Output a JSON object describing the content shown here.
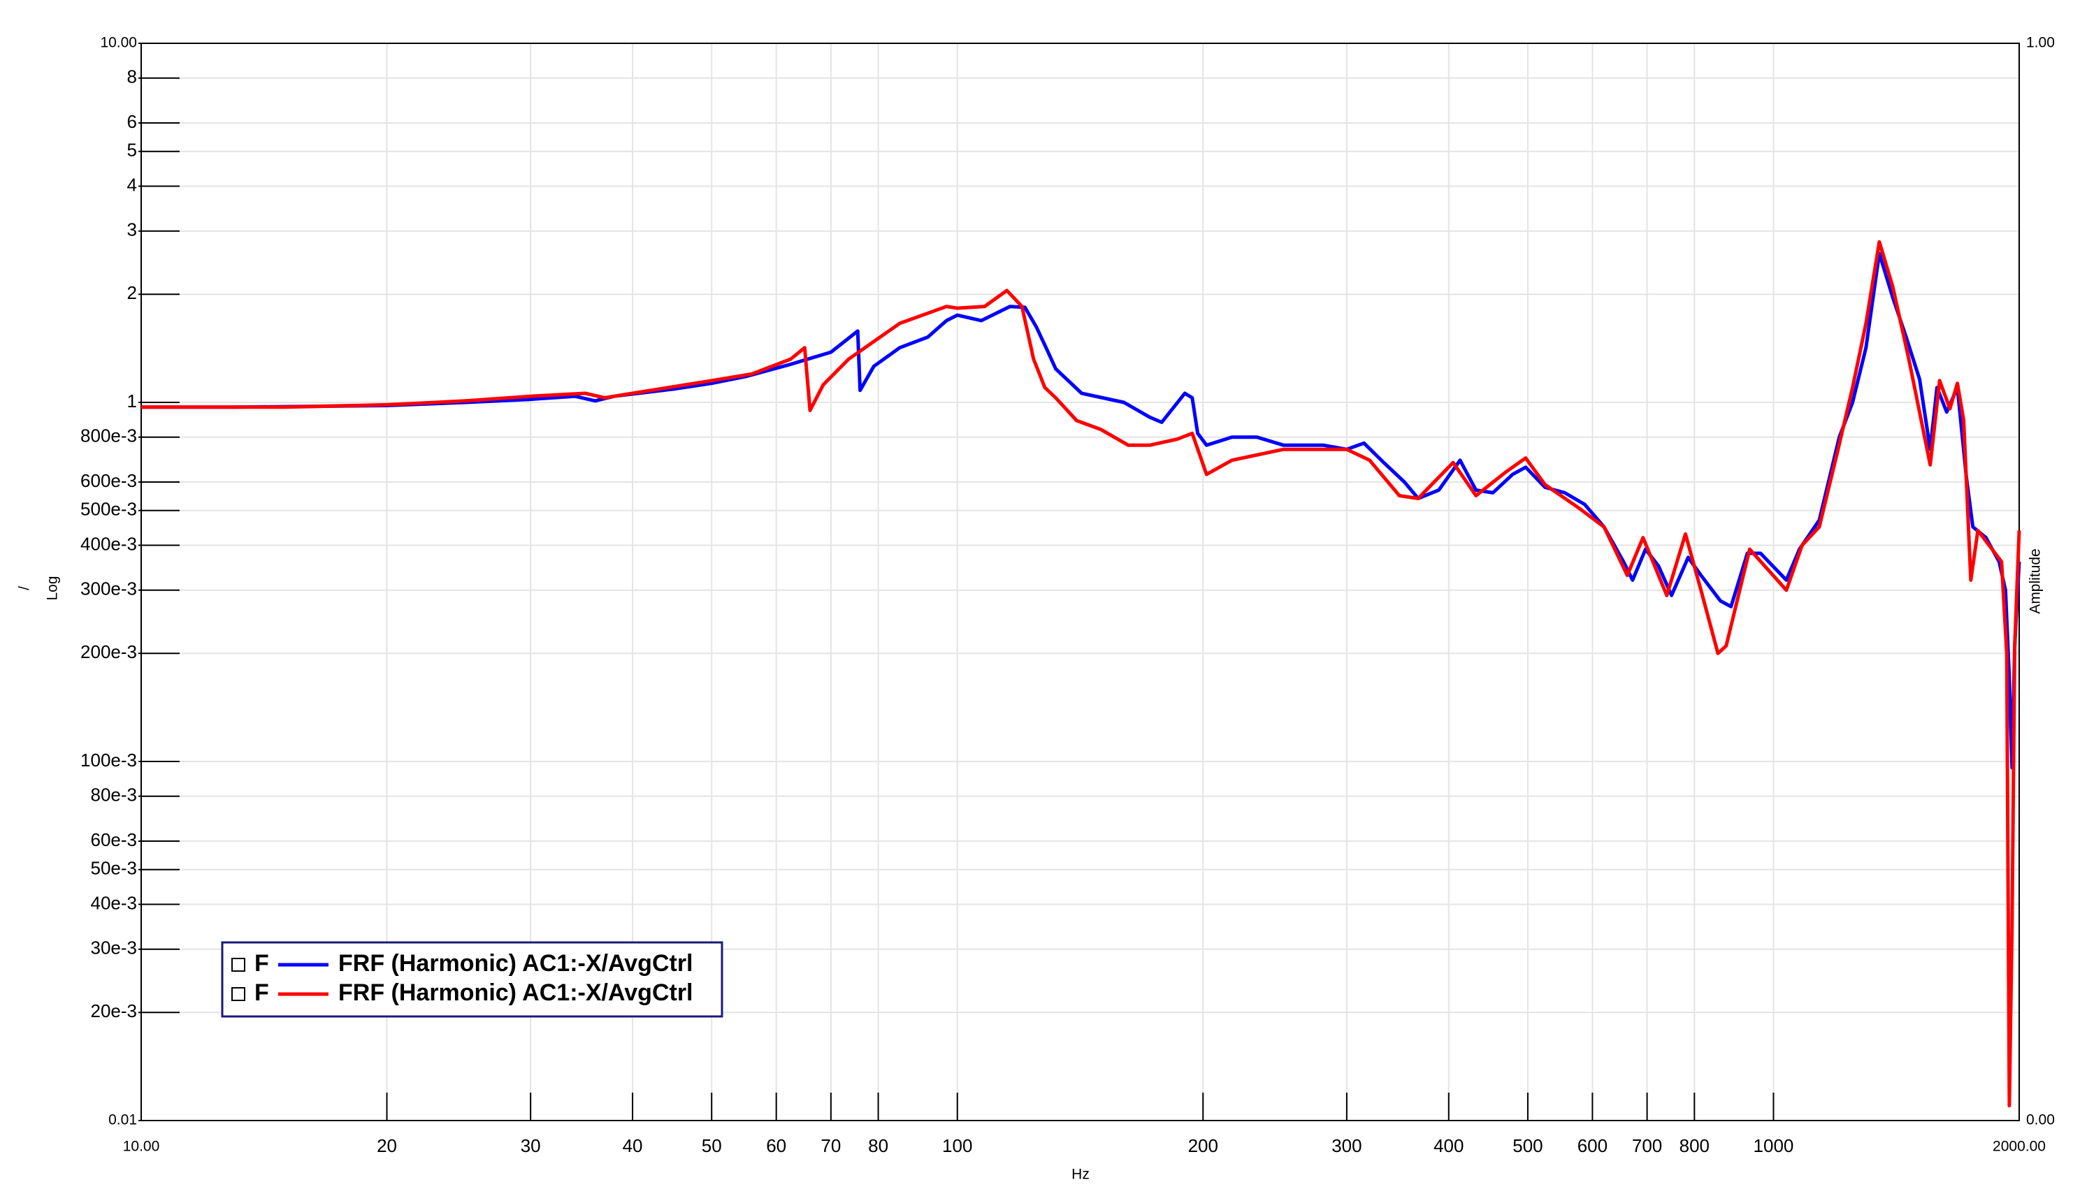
{
  "chart_data": {
    "type": "line",
    "xscale": "log",
    "yscale": "log",
    "grid": true,
    "legend": "lower left",
    "legend_marker_label": "F",
    "x_label": "Hz",
    "y_label": "/",
    "y_label_2": "Log",
    "y2_label": "Amplitude",
    "xlim": [
      10,
      2000
    ],
    "ylim": [
      0.01,
      10
    ],
    "y2lim": [
      0,
      1
    ],
    "xticks": [
      {
        "value": 10,
        "label": "10.00"
      },
      20,
      30,
      40,
      50,
      60,
      70,
      80,
      100,
      200,
      300,
      400,
      500,
      600,
      700,
      800,
      1000,
      {
        "value": 2000,
        "label": "2000.00"
      }
    ],
    "yticks": [
      {
        "value": 10,
        "label": "10.00"
      },
      8,
      6,
      5,
      4,
      3,
      2,
      1,
      {
        "value": 0.8,
        "label": "800e-3"
      },
      {
        "value": 0.6,
        "label": "600e-3"
      },
      {
        "value": 0.5,
        "label": "500e-3"
      },
      {
        "value": 0.4,
        "label": "400e-3"
      },
      {
        "value": 0.3,
        "label": "300e-3"
      },
      {
        "value": 0.2,
        "label": "200e-3"
      },
      {
        "value": 0.1,
        "label": "100e-3"
      },
      {
        "value": 0.08,
        "label": "80e-3"
      },
      {
        "value": 0.06,
        "label": "60e-3"
      },
      {
        "value": 0.05,
        "label": "50e-3"
      },
      {
        "value": 0.04,
        "label": "40e-3"
      },
      {
        "value": 0.03,
        "label": "30e-3"
      },
      {
        "value": 0.02,
        "label": "20e-3"
      },
      0.01
    ],
    "y2ticks": [
      {
        "value": 0,
        "label": "0.00"
      },
      {
        "value": 1,
        "label": "1.00"
      }
    ],
    "series": [
      {
        "name": "FRF (Harmonic) AC1:-X/AvgCtrl",
        "color": "#0000ff",
        "x": [
          10,
          13,
          16,
          20,
          25,
          30,
          34,
          36,
          38,
          45,
          50,
          55,
          62,
          70,
          75.5,
          76,
          79,
          85,
          92,
          97,
          100,
          107,
          116,
          121,
          125,
          129,
          132,
          142,
          160,
          172,
          178,
          190,
          194,
          197,
          202,
          217,
          233,
          251,
          281,
          300,
          315,
          333,
          353,
          367,
          389,
          413,
          432,
          453,
          479,
          497,
          525,
          555,
          587,
          620,
          655,
          672,
          697,
          723,
          750,
          786,
          815,
          861,
          887,
          929,
          964,
          1037,
          1076,
          1138,
          1204,
          1250,
          1298,
          1348,
          1400,
          1454,
          1510,
          1556,
          1586,
          1630,
          1680,
          1723,
          1755,
          1821,
          1890,
          1924,
          1945,
          1960,
          1975,
          2000
        ],
        "values": [
          0.97,
          0.97,
          0.975,
          0.98,
          1.0,
          1.02,
          1.04,
          1.01,
          1.04,
          1.09,
          1.13,
          1.18,
          1.27,
          1.38,
          1.58,
          1.08,
          1.26,
          1.42,
          1.52,
          1.69,
          1.75,
          1.69,
          1.85,
          1.84,
          1.62,
          1.39,
          1.24,
          1.06,
          1.0,
          0.91,
          0.88,
          1.06,
          1.03,
          0.82,
          0.76,
          0.8,
          0.8,
          0.76,
          0.76,
          0.74,
          0.77,
          0.68,
          0.6,
          0.54,
          0.57,
          0.69,
          0.57,
          0.56,
          0.63,
          0.66,
          0.58,
          0.56,
          0.52,
          0.45,
          0.36,
          0.32,
          0.39,
          0.35,
          0.29,
          0.37,
          0.33,
          0.28,
          0.27,
          0.38,
          0.38,
          0.32,
          0.39,
          0.47,
          0.8,
          1.0,
          1.42,
          2.6,
          1.96,
          1.52,
          1.16,
          0.74,
          1.1,
          0.94,
          1.1,
          0.62,
          0.45,
          0.42,
          0.36,
          0.3,
          0.17,
          0.096,
          0.21,
          0.36
        ]
      },
      {
        "name": "FRF (Harmonic) AC1:-X/AvgCtrl",
        "color": "#ff0000",
        "x": [
          10,
          15,
          20,
          25,
          30,
          35,
          37,
          40,
          50,
          56,
          62.5,
          65,
          66,
          68.5,
          73.6,
          85,
          97,
          100,
          108,
          115,
          120,
          124,
          128,
          132,
          140,
          150,
          162,
          172,
          186,
          194,
          202,
          217,
          251,
          300,
          320,
          348,
          367,
          405,
          432,
          470,
          497,
          525,
          576,
          620,
          662,
          692,
          740,
          780,
          815,
          855,
          875,
          935,
          1037,
          1084,
          1138,
          1200,
          1250,
          1298,
          1348,
          1400,
          1465,
          1556,
          1598,
          1645,
          1680,
          1710,
          1745,
          1780,
          1853,
          1903,
          1931,
          1945,
          1960,
          1975,
          2000
        ],
        "values": [
          0.97,
          0.97,
          0.985,
          1.01,
          1.04,
          1.06,
          1.03,
          1.06,
          1.15,
          1.2,
          1.32,
          1.42,
          0.95,
          1.12,
          1.32,
          1.66,
          1.85,
          1.83,
          1.85,
          2.05,
          1.85,
          1.32,
          1.1,
          1.03,
          0.89,
          0.84,
          0.76,
          0.76,
          0.79,
          0.82,
          0.63,
          0.69,
          0.74,
          0.74,
          0.69,
          0.55,
          0.54,
          0.68,
          0.55,
          0.64,
          0.7,
          0.59,
          0.51,
          0.45,
          0.33,
          0.42,
          0.29,
          0.43,
          0.3,
          0.2,
          0.21,
          0.39,
          0.3,
          0.4,
          0.45,
          0.74,
          1.1,
          1.66,
          2.8,
          2.1,
          1.32,
          0.67,
          1.15,
          0.96,
          1.13,
          0.89,
          0.32,
          0.44,
          0.39,
          0.36,
          0.2,
          0.011,
          0.035,
          0.21,
          0.44
        ]
      }
    ]
  }
}
